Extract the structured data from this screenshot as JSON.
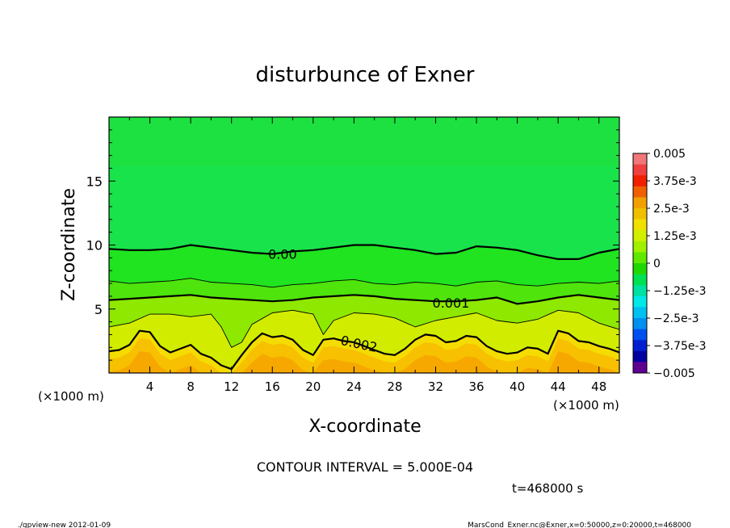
{
  "chart_data": {
    "type": "heatmap",
    "title": "disturbunce of Exner",
    "xlabel": "X-coordinate",
    "ylabel": "Z-coordinate",
    "x_unit_left": "(×1000 m)",
    "x_unit_right": "(×1000 m)",
    "xlim": [
      0,
      50
    ],
    "ylim": [
      0,
      20
    ],
    "x_ticks": [
      4,
      8,
      12,
      16,
      20,
      24,
      28,
      32,
      36,
      40,
      44,
      48
    ],
    "y_ticks": [
      5,
      10,
      15
    ],
    "contour_interval_text": "CONTOUR INTERVAL = 5.000E-04",
    "time_text": "t=468000 s",
    "contour_labels": [
      {
        "text": "0.00",
        "x": 17.0,
        "z": 9.3
      },
      {
        "text": "0.001",
        "x": 33.5,
        "z": 5.5
      },
      {
        "text": "0.002",
        "x": 24.5,
        "z": 2.3
      }
    ],
    "contours": [
      {
        "level": 0.0,
        "major": true,
        "x": [
          0,
          2,
          4,
          6,
          8,
          10,
          12,
          14,
          16,
          18,
          20,
          22,
          24,
          26,
          28,
          30,
          32,
          34,
          36,
          38,
          40,
          42,
          44,
          46,
          48,
          50
        ],
        "z": [
          9.7,
          9.6,
          9.6,
          9.7,
          10.0,
          9.8,
          9.6,
          9.4,
          9.3,
          9.5,
          9.6,
          9.8,
          10.0,
          10.0,
          9.8,
          9.6,
          9.3,
          9.4,
          9.9,
          9.8,
          9.6,
          9.2,
          8.9,
          8.9,
          9.4,
          9.7
        ]
      },
      {
        "level": 0.0005,
        "major": false,
        "x": [
          0,
          2,
          4,
          6,
          8,
          10,
          12,
          14,
          16,
          18,
          20,
          22,
          24,
          26,
          28,
          30,
          32,
          34,
          36,
          38,
          40,
          42,
          44,
          46,
          48,
          50
        ],
        "z": [
          7.2,
          7.0,
          7.1,
          7.2,
          7.4,
          7.1,
          7.0,
          6.9,
          6.7,
          6.9,
          7.0,
          7.2,
          7.3,
          7.0,
          6.9,
          7.1,
          7.0,
          6.8,
          7.1,
          7.2,
          6.9,
          6.8,
          7.0,
          7.1,
          7.0,
          7.2
        ]
      },
      {
        "level": 0.001,
        "major": true,
        "x": [
          0,
          2,
          4,
          6,
          8,
          10,
          12,
          14,
          16,
          18,
          20,
          22,
          24,
          26,
          28,
          30,
          32,
          34,
          36,
          38,
          40,
          42,
          44,
          46,
          48,
          50
        ],
        "z": [
          5.7,
          5.8,
          5.9,
          6.0,
          6.1,
          5.9,
          5.8,
          5.7,
          5.6,
          5.7,
          5.9,
          6.0,
          6.1,
          6.0,
          5.8,
          5.7,
          5.6,
          5.6,
          5.7,
          5.9,
          5.4,
          5.6,
          5.9,
          6.1,
          5.9,
          5.7
        ]
      },
      {
        "level": 0.0015,
        "major": false,
        "x": [
          0,
          2,
          4,
          6,
          8,
          10,
          11,
          12,
          13,
          14,
          16,
          18,
          20,
          21,
          22,
          24,
          26,
          28,
          30,
          32,
          34,
          36,
          38,
          40,
          42,
          44,
          46,
          48,
          50
        ],
        "z": [
          3.6,
          3.9,
          4.6,
          4.6,
          4.4,
          4.6,
          3.6,
          2.0,
          2.4,
          3.8,
          4.7,
          4.9,
          4.6,
          3.0,
          4.1,
          4.7,
          4.6,
          4.3,
          3.6,
          4.1,
          4.4,
          4.7,
          4.1,
          3.9,
          4.2,
          4.9,
          4.7,
          3.9,
          3.4
        ]
      },
      {
        "level": 0.002,
        "major": true,
        "x": [
          0,
          1,
          2,
          3,
          4,
          5,
          6,
          7,
          8,
          9,
          10,
          11,
          12,
          13,
          14,
          15,
          16,
          17,
          18,
          19,
          20,
          21,
          22,
          23,
          24,
          25,
          26,
          27,
          28,
          29,
          30,
          31,
          32,
          33,
          34,
          35,
          36,
          37,
          38,
          39,
          40,
          41,
          42,
          43,
          44,
          45,
          46,
          47,
          48,
          49,
          50
        ],
        "z": [
          1.7,
          1.8,
          2.2,
          3.3,
          3.2,
          2.1,
          1.6,
          1.9,
          2.2,
          1.5,
          1.2,
          0.6,
          0.3,
          1.4,
          2.4,
          3.1,
          2.8,
          2.9,
          2.6,
          1.8,
          1.4,
          2.6,
          2.7,
          2.5,
          2.4,
          2.1,
          1.8,
          1.5,
          1.4,
          1.9,
          2.6,
          3.0,
          2.9,
          2.4,
          2.5,
          2.9,
          2.8,
          2.1,
          1.7,
          1.5,
          1.6,
          2.0,
          1.9,
          1.5,
          3.3,
          3.1,
          2.5,
          2.4,
          2.1,
          1.9,
          1.6
        ]
      }
    ],
    "colorbar": {
      "labels": [
        "0.005",
        "3.75e-3",
        "2.5e-3",
        "1.25e-3",
        "0",
        "−1.25e-3",
        "−2.5e-3",
        "−3.75e-3",
        "−0.005"
      ],
      "colors": [
        "#f07878",
        "#f04040",
        "#f02000",
        "#f06000",
        "#f0a000",
        "#f0c000",
        "#f0e000",
        "#d0f000",
        "#a0f000",
        "#60e800",
        "#20d800",
        "#00e050",
        "#00e0a0",
        "#00e8e8",
        "#00c0f0",
        "#0090f0",
        "#0050f0",
        "#0020d0",
        "#0000a0",
        "#600090"
      ],
      "range": [
        -0.005,
        0.005
      ]
    },
    "color_levels": [
      {
        "level": 0.0,
        "color": "#1fe41f"
      },
      {
        "level": 0.0005,
        "color": "#4ee40c"
      },
      {
        "level": 0.001,
        "color": "#8ee800"
      },
      {
        "level": 0.0015,
        "color": "#d2ec00"
      },
      {
        "level": 0.002,
        "color": "#f4dc00"
      },
      {
        "level": 0.0025,
        "color": "#f7c000"
      },
      {
        "level": 0.003,
        "color": "#f7a800"
      }
    ],
    "field_base_color": "#19e34a",
    "upper_band_color": "#22e038"
  },
  "footer": {
    "left": "./gpview-new  2012-01-09",
    "right": "MarsCond_Exner.nc@Exner,x=0:50000,z=0:20000,t=468000"
  }
}
